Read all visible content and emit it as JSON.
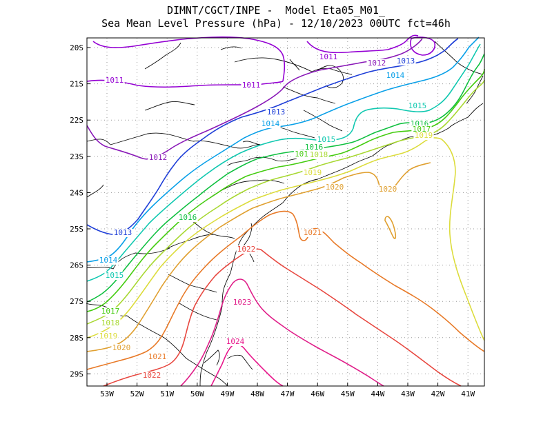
{
  "title_line1": "DIMNT/CGCT/INPE -  Model Eta05_M01_",
  "title_line2": "Sea Mean Level Pressure (hPa) - 12/10/2023 00UTC fct=46h",
  "lon_ticks": [
    "53W",
    "52W",
    "51W",
    "50W",
    "49W",
    "48W",
    "47W",
    "46W",
    "45W",
    "44W",
    "43W",
    "42W",
    "41W"
  ],
  "lat_ticks": [
    "20S",
    "21S",
    "22S",
    "23S",
    "24S",
    "25S",
    "26S",
    "27S",
    "28S",
    "29S"
  ],
  "contour_labels": [
    "1011",
    "1011",
    "1011",
    "1012",
    "1012",
    "1013",
    "1013",
    "1013",
    "1014",
    "1014",
    "1014",
    "1015",
    "1015",
    "1015",
    "1016",
    "1016",
    "1016",
    "1017",
    "1017",
    "1018",
    "1018",
    "1019",
    "1019",
    "1019",
    "1020",
    "1020",
    "1020",
    "1021",
    "1021",
    "1022",
    "1022",
    "1023",
    "1024",
    "101"
  ],
  "colors": {
    "1011": "#9400d3",
    "1012": "#8a1ab8",
    "1013": "#1e3ed8",
    "1014": "#0aa0e8",
    "1015": "#10c8b0",
    "1016": "#10c040",
    "1017": "#44cc10",
    "1018": "#a8d832",
    "1019": "#dcdc3c",
    "1020": "#e0a030",
    "1021": "#e87a28",
    "1022": "#e84840",
    "1023": "#e0208a",
    "1024": "#e8188c"
  }
}
